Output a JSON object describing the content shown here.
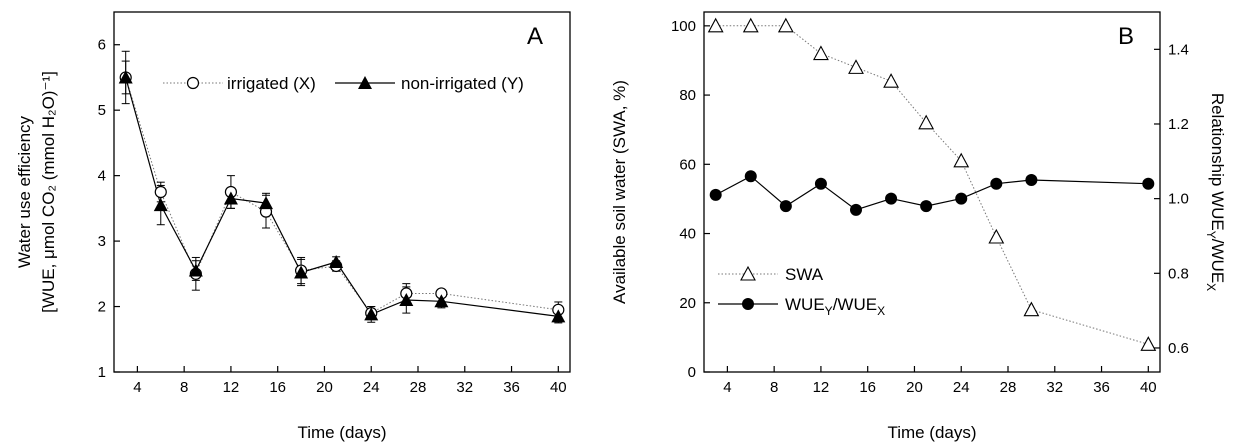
{
  "chart_data": [
    {
      "type": "line",
      "panel_label": "A",
      "xlabel": "Time (days)",
      "ylabel_line1": "Water use efficiency",
      "ylabel_line2": "[WUE, μmol CO₂ (mmol H₂O)⁻¹]",
      "xlim": [
        2,
        41
      ],
      "ylim": [
        1,
        6.5
      ],
      "xticks": [
        4,
        8,
        12,
        16,
        20,
        24,
        28,
        32,
        36,
        40
      ],
      "yticks": [
        1,
        2,
        3,
        4,
        5,
        6
      ],
      "legend_position": "top-right",
      "series": [
        {
          "name": "irrigated (X)",
          "marker": "open-circle",
          "line": "dotted",
          "x": [
            3,
            6,
            9,
            12,
            15,
            18,
            21,
            24,
            27,
            30,
            40
          ],
          "y": [
            5.5,
            3.75,
            2.5,
            3.75,
            3.45,
            2.55,
            2.62,
            1.9,
            2.2,
            2.2,
            1.95
          ],
          "err": [
            0.4,
            0.15,
            0.25,
            0.25,
            0.25,
            0.2,
            0.08,
            0.1,
            0.15,
            0.05,
            0.12
          ]
        },
        {
          "name": "non-irrigated (Y)",
          "marker": "filled-triangle",
          "line": "solid",
          "x": [
            3,
            6,
            9,
            12,
            15,
            18,
            21,
            24,
            27,
            30,
            40
          ],
          "y": [
            5.5,
            3.55,
            2.55,
            3.65,
            3.58,
            2.52,
            2.68,
            1.88,
            2.1,
            2.08,
            1.85
          ],
          "err": [
            0.25,
            0.3,
            0.15,
            0.15,
            0.15,
            0.2,
            0.08,
            0.12,
            0.2,
            0.1,
            0.1
          ]
        }
      ]
    },
    {
      "type": "line",
      "panel_label": "B",
      "xlabel": "Time (days)",
      "ylabel_left": "Available soil water (SWA, %)",
      "ylabel_right": "Relationship WUEY/WUEX",
      "xlim": [
        2,
        41
      ],
      "ylim_left": [
        0,
        104
      ],
      "ylim_right": [
        0.5356,
        1.5
      ],
      "xticks": [
        4,
        8,
        12,
        16,
        20,
        24,
        28,
        32,
        36,
        40
      ],
      "yticks_left": [
        0,
        20,
        40,
        60,
        80,
        100
      ],
      "yticks_right": [
        0.6,
        0.8,
        1.0,
        1.2,
        1.4
      ],
      "legend_position": "bottom-left",
      "series": [
        {
          "name": "SWA",
          "axis": "left",
          "marker": "open-triangle",
          "line": "dotted",
          "x": [
            3,
            6,
            9,
            12,
            15,
            18,
            21,
            24,
            27,
            30,
            40
          ],
          "y": [
            100,
            100,
            100,
            92,
            88,
            84,
            72,
            61,
            39,
            18,
            8
          ]
        },
        {
          "name": "WUEY/WUEX",
          "axis": "right",
          "marker": "filled-circle",
          "line": "solid",
          "x": [
            3,
            6,
            9,
            12,
            15,
            18,
            21,
            24,
            27,
            30,
            40
          ],
          "y": [
            1.01,
            1.06,
            0.98,
            1.04,
            0.97,
            1.0,
            0.98,
            1.0,
            1.04,
            1.05,
            1.04
          ]
        }
      ]
    }
  ]
}
